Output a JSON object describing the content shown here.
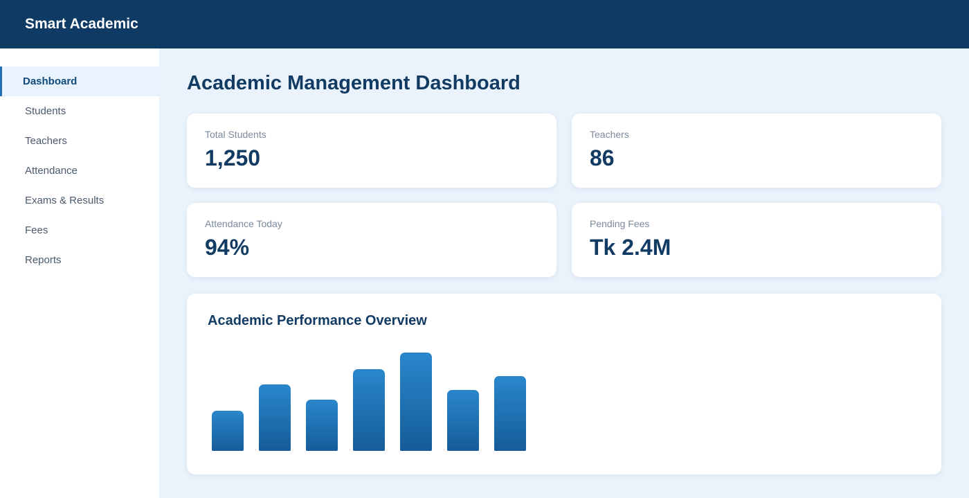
{
  "app": {
    "title": "Smart Academic"
  },
  "sidebar": {
    "items": [
      {
        "label": "Dashboard",
        "active": true
      },
      {
        "label": "Students"
      },
      {
        "label": "Teachers"
      },
      {
        "label": "Attendance"
      },
      {
        "label": "Exams & Results"
      },
      {
        "label": "Fees"
      },
      {
        "label": "Reports"
      }
    ]
  },
  "main": {
    "title": "Academic Management Dashboard",
    "stats": [
      {
        "label": "Total Students",
        "value": "1,250"
      },
      {
        "label": "Teachers",
        "value": "86"
      },
      {
        "label": "Attendance Today",
        "value": "94%"
      },
      {
        "label": "Pending Fees",
        "value": "Tk 2.4M"
      }
    ]
  },
  "chart_data": {
    "type": "bar",
    "title": "Academic Performance Overview",
    "values": [
      58,
      96,
      74,
      118,
      142,
      88,
      108
    ],
    "ylim": [
      0,
      150
    ],
    "grid": false,
    "bar_color": "#2a87cc"
  },
  "colors": {
    "header": "#0f3a63",
    "accent": "#1f6fb2",
    "background": "#eaf2fb"
  }
}
